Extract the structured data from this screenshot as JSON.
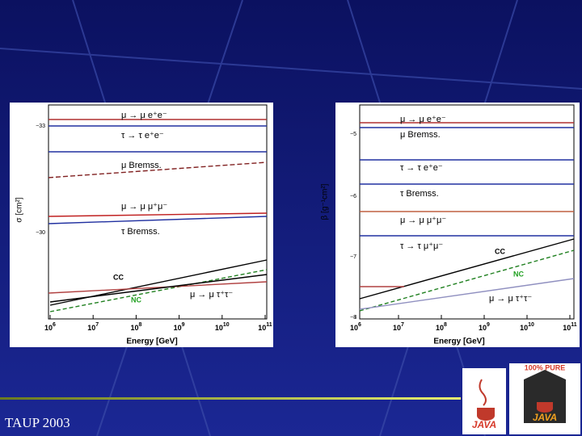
{
  "footer": "TAUP 2003",
  "plots": [
    {
      "y_label": "σ [cm²]",
      "y_ticks": [
        "−33",
        "−30"
      ],
      "x_ticks": [
        {
          "base": "10",
          "exp": "6"
        },
        {
          "base": "10",
          "exp": "7"
        },
        {
          "base": "10",
          "exp": "8"
        },
        {
          "base": "10",
          "exp": "9"
        },
        {
          "base": "10",
          "exp": "10"
        },
        {
          "base": "10",
          "exp": "11"
        }
      ],
      "x_label": "Energy [GeV]",
      "annotations": [
        "μ → μ e⁺e⁻",
        "τ → τ e⁺e⁻",
        "μ Bremss.",
        "μ → μ μ⁺μ⁻",
        "τ Bremss.",
        "CC",
        "NC",
        "μ → μ τ⁺τ⁻"
      ]
    },
    {
      "y_label": "β [g⁻¹cm²]",
      "y_ticks": [
        "−5",
        "−6",
        "−7",
        "−8"
      ],
      "x_ticks": [
        {
          "base": "10",
          "exp": "6"
        },
        {
          "base": "10",
          "exp": "7"
        },
        {
          "base": "10",
          "exp": "8"
        },
        {
          "base": "10",
          "exp": "9"
        },
        {
          "base": "10",
          "exp": "10"
        },
        {
          "base": "10",
          "exp": "11"
        }
      ],
      "x_label": "Energy [GeV]",
      "annotations": [
        "μ → μ e⁺e⁻",
        "μ Bremss.",
        "τ → τ e⁺e⁻",
        "τ Bremss.",
        "μ → μ μ⁺μ⁻",
        "τ → τ μ⁺μ⁻",
        "CC",
        "NC",
        "μ → μ τ⁺τ⁻"
      ]
    }
  ],
  "logos": [
    {
      "label": "JAVA"
    },
    {
      "label": "JAVA",
      "ring": "100% PURE"
    }
  ]
}
